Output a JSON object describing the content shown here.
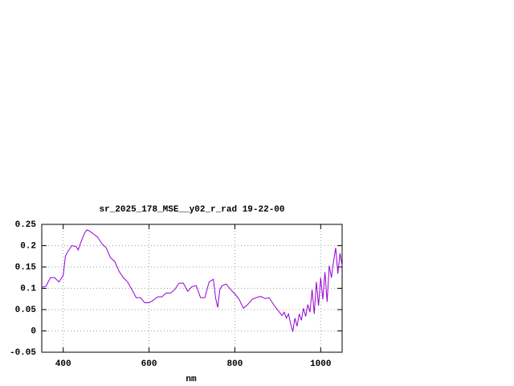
{
  "chart_data": {
    "type": "line",
    "title": "sr_2025_178_MSE__y02_r_rad 19-22-00",
    "x_label": "nm",
    "xlim": [
      350,
      1050
    ],
    "xticks": [
      400,
      600,
      800,
      1000
    ],
    "ylim": [
      -0.05,
      0.25
    ],
    "yticks": [
      0.25,
      0.2,
      0.15,
      0.1,
      0.05,
      0,
      -0.05
    ],
    "grid": true,
    "series": [
      {
        "color": "#9400d3",
        "x": [
          350,
          360,
          370,
          380,
          390,
          400,
          405,
          410,
          420,
          430,
          435,
          440,
          450,
          455,
          460,
          470,
          480,
          490,
          500,
          510,
          520,
          530,
          540,
          550,
          560,
          570,
          580,
          590,
          600,
          610,
          620,
          630,
          640,
          650,
          660,
          670,
          680,
          690,
          700,
          710,
          720,
          730,
          740,
          750,
          755,
          760,
          765,
          770,
          780,
          790,
          800,
          810,
          820,
          830,
          840,
          850,
          860,
          870,
          880,
          890,
          900,
          910,
          915,
          920,
          925,
          930,
          935,
          940,
          945,
          950,
          955,
          960,
          965,
          970,
          975,
          980,
          985,
          990,
          995,
          1000,
          1005,
          1010,
          1015,
          1020,
          1025,
          1030,
          1035,
          1040,
          1045,
          1050
        ],
        "values": [
          0.102,
          0.105,
          0.125,
          0.125,
          0.115,
          0.13,
          0.175,
          0.185,
          0.2,
          0.198,
          0.19,
          0.205,
          0.23,
          0.237,
          0.235,
          0.228,
          0.22,
          0.205,
          0.195,
          0.172,
          0.163,
          0.14,
          0.125,
          0.115,
          0.097,
          0.078,
          0.078,
          0.066,
          0.066,
          0.072,
          0.08,
          0.08,
          0.089,
          0.089,
          0.097,
          0.112,
          0.112,
          0.093,
          0.104,
          0.106,
          0.078,
          0.078,
          0.115,
          0.121,
          0.078,
          0.055,
          0.097,
          0.106,
          0.11,
          0.097,
          0.087,
          0.074,
          0.053,
          0.062,
          0.074,
          0.078,
          0.081,
          0.076,
          0.078,
          0.062,
          0.049,
          0.036,
          0.044,
          0.03,
          0.04,
          0.017,
          -0.002,
          0.03,
          0.011,
          0.04,
          0.025,
          0.053,
          0.034,
          0.062,
          0.044,
          0.097,
          0.04,
          0.115,
          0.059,
          0.125,
          0.074,
          0.138,
          0.068,
          0.153,
          0.125,
          0.163,
          0.195,
          0.134,
          0.182,
          0.153
        ]
      }
    ]
  }
}
